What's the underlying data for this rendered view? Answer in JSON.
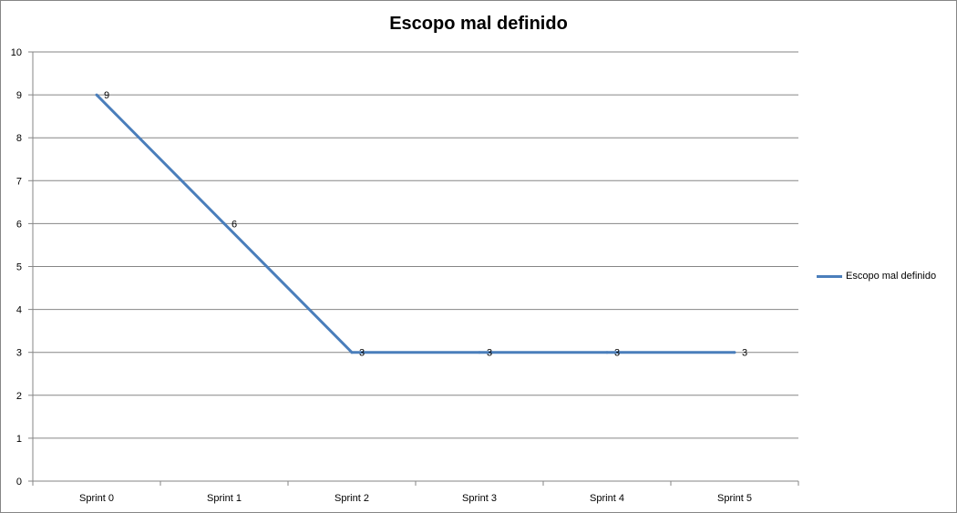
{
  "chart_data": {
    "type": "line",
    "title": "Escopo mal definido",
    "xlabel": "",
    "ylabel": "",
    "categories": [
      "Sprint 0",
      "Sprint 1",
      "Sprint 2",
      "Sprint 3",
      "Sprint 4",
      "Sprint 5"
    ],
    "series": [
      {
        "name": "Escopo mal  definido",
        "values": [
          9,
          6,
          3,
          3,
          3,
          3
        ],
        "color": "#4a7ebb"
      }
    ],
    "ylim": [
      0,
      10
    ],
    "yticks": [
      "0",
      "1",
      "2",
      "3",
      "4",
      "5",
      "6",
      "7",
      "8",
      "9",
      "10"
    ],
    "grid": true,
    "legend_position": "right",
    "data_labels": true
  }
}
